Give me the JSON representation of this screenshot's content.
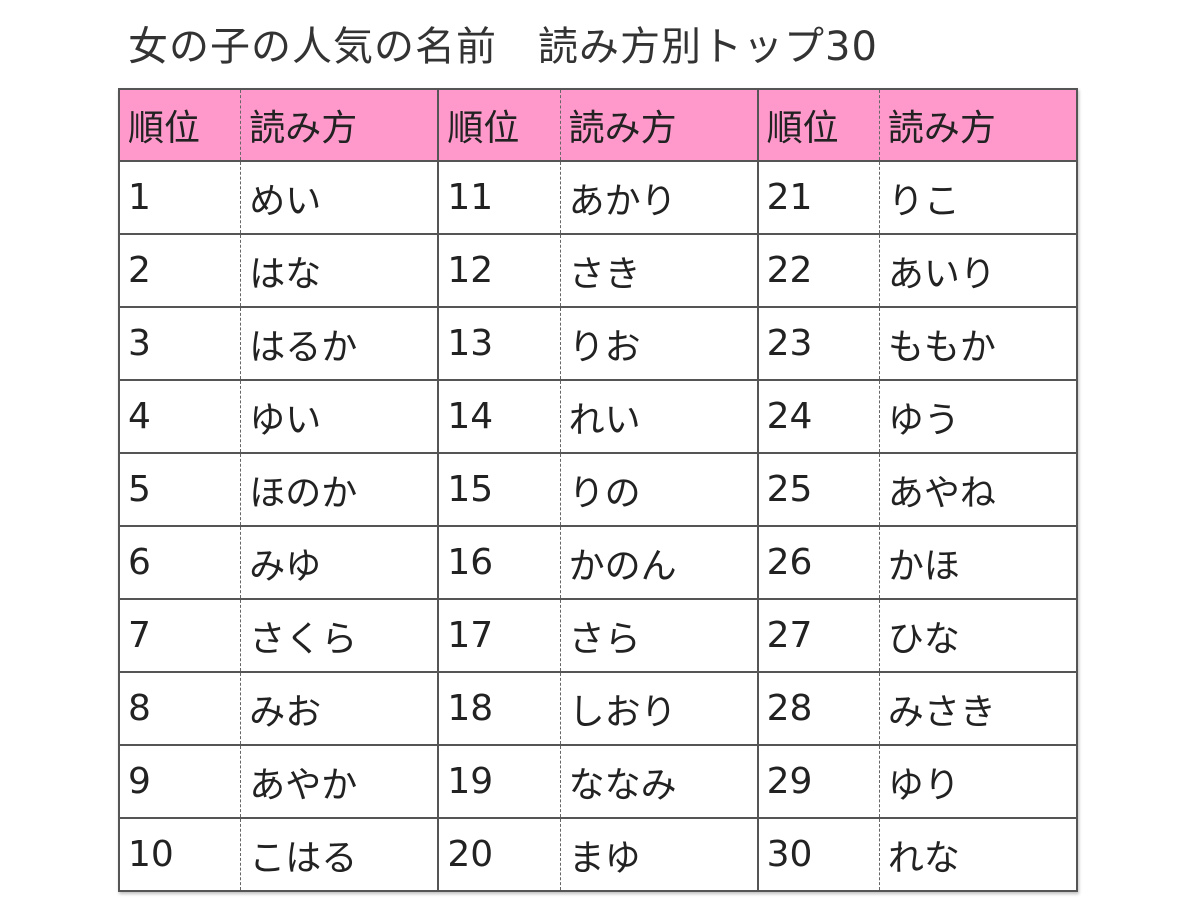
{
  "title": "女の子の人気の名前　読み方別トップ30",
  "header": {
    "rank": "順位",
    "reading": "読み方"
  },
  "colors": {
    "header_bg": "#ff99cc"
  },
  "rows": [
    [
      [
        "1",
        "めい"
      ],
      [
        "11",
        "あかり"
      ],
      [
        "21",
        "りこ"
      ]
    ],
    [
      [
        "2",
        "はな"
      ],
      [
        "12",
        "さき"
      ],
      [
        "22",
        "あいり"
      ]
    ],
    [
      [
        "3",
        "はるか"
      ],
      [
        "13",
        "りお"
      ],
      [
        "23",
        "ももか"
      ]
    ],
    [
      [
        "4",
        "ゆい"
      ],
      [
        "14",
        "れい"
      ],
      [
        "24",
        "ゆう"
      ]
    ],
    [
      [
        "5",
        "ほのか"
      ],
      [
        "15",
        "りの"
      ],
      [
        "25",
        "あやね"
      ]
    ],
    [
      [
        "6",
        "みゆ"
      ],
      [
        "16",
        "かのん"
      ],
      [
        "26",
        "かほ"
      ]
    ],
    [
      [
        "7",
        "さくら"
      ],
      [
        "17",
        "さら"
      ],
      [
        "27",
        "ひな"
      ]
    ],
    [
      [
        "8",
        "みお"
      ],
      [
        "18",
        "しおり"
      ],
      [
        "28",
        "みさき"
      ]
    ],
    [
      [
        "9",
        "あやか"
      ],
      [
        "19",
        "ななみ"
      ],
      [
        "29",
        "ゆり"
      ]
    ],
    [
      [
        "10",
        "こはる"
      ],
      [
        "20",
        "まゆ"
      ],
      [
        "30",
        "れな"
      ]
    ]
  ]
}
